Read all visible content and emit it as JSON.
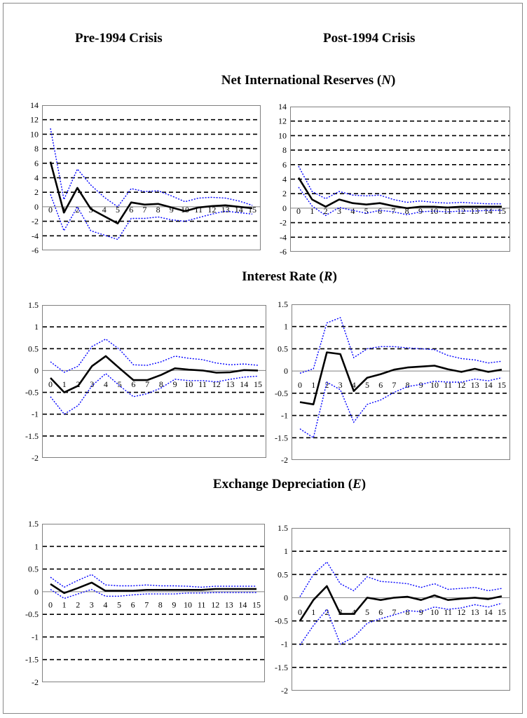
{
  "header": {
    "left": "Pre-1994 Crisis",
    "right": "Post-1994 Crisis"
  },
  "sections": [
    {
      "title": "Net International Reserves",
      "symbol": "N"
    },
    {
      "title": "Interest Rate",
      "symbol": "R"
    },
    {
      "title": "Exchange Depreciation",
      "symbol": "E"
    }
  ],
  "colors": {
    "point": "#000000",
    "band": "#0000ff",
    "grid": "#000000"
  },
  "chart_data": [
    {
      "type": "line",
      "section": "Net International Reserves (N)",
      "column": "Pre-1994 Crisis",
      "x": [
        0,
        1,
        2,
        3,
        4,
        5,
        6,
        7,
        8,
        9,
        10,
        11,
        12,
        13,
        14,
        15
      ],
      "ylim": [
        -6,
        14
      ],
      "yticks": [
        -6,
        -4,
        -2,
        0,
        2,
        4,
        6,
        8,
        10,
        12,
        14
      ],
      "dashed_lines": [
        12,
        10,
        8,
        6,
        4,
        2,
        -2,
        -4
      ],
      "x_labels_at": 0,
      "series": [
        {
          "values": [
            6.2,
            -0.8,
            2.6,
            -0.3,
            -1.3,
            -2.3,
            0.6,
            0.3,
            0.4,
            -0.1,
            -0.6,
            -0.1,
            0.1,
            0.2,
            0.0,
            -0.2
          ]
        },
        {
          "values": [
            10.8,
            1.0,
            5.2,
            3.0,
            1.3,
            0.0,
            2.5,
            2.1,
            2.2,
            1.5,
            0.7,
            1.2,
            1.3,
            1.2,
            0.8,
            0.2
          ]
        },
        {
          "values": [
            1.7,
            -3.3,
            0.0,
            -3.3,
            -3.9,
            -4.5,
            -1.6,
            -1.6,
            -1.4,
            -1.8,
            -2.0,
            -1.5,
            -1.0,
            -0.6,
            -0.8,
            -1.0
          ]
        }
      ]
    },
    {
      "type": "line",
      "section": "Net International Reserves (N)",
      "column": "Post-1994 Crisis",
      "x": [
        0,
        1,
        2,
        3,
        4,
        5,
        6,
        7,
        8,
        9,
        10,
        11,
        12,
        13,
        14,
        15
      ],
      "ylim": [
        -6,
        14
      ],
      "yticks": [
        -6,
        -4,
        -2,
        0,
        2,
        4,
        6,
        8,
        10,
        12,
        14
      ],
      "dashed_lines": [
        12,
        10,
        8,
        6,
        4,
        2,
        -2,
        -4
      ],
      "x_labels_at": 0,
      "series": [
        {
          "values": [
            4.2,
            1.2,
            0.2,
            1.2,
            0.7,
            0.5,
            0.7,
            0.3,
            0.0,
            0.2,
            0.2,
            0.1,
            0.2,
            0.2,
            0.2,
            0.2
          ]
        },
        {
          "values": [
            5.8,
            2.3,
            1.3,
            2.3,
            1.8,
            1.7,
            1.8,
            1.2,
            0.8,
            1.0,
            0.8,
            0.7,
            0.8,
            0.7,
            0.6,
            0.6
          ]
        },
        {
          "values": [
            2.9,
            0.3,
            -1.0,
            0.1,
            -0.3,
            -0.7,
            -0.3,
            -0.5,
            -0.9,
            -0.5,
            -0.4,
            -0.5,
            -0.4,
            -0.4,
            -0.3,
            -0.3
          ]
        }
      ]
    },
    {
      "type": "line",
      "section": "Interest Rate (R)",
      "column": "Pre-1994 Crisis",
      "x": [
        0,
        1,
        2,
        3,
        4,
        5,
        6,
        7,
        8,
        9,
        10,
        11,
        12,
        13,
        14,
        15
      ],
      "ylim": [
        -2,
        1.5
      ],
      "yticks": [
        -2,
        -1.5,
        -1,
        -0.5,
        0,
        0.5,
        1,
        1.5
      ],
      "dashed_lines": [
        1,
        0.5,
        -0.5,
        -1,
        -1.5
      ],
      "x_labels_at": -0.25,
      "series": [
        {
          "values": [
            -0.17,
            -0.5,
            -0.35,
            0.1,
            0.33,
            0.05,
            -0.22,
            -0.22,
            -0.1,
            0.05,
            0.02,
            0.0,
            -0.05,
            -0.04,
            0.01,
            0.0
          ]
        },
        {
          "values": [
            0.2,
            -0.04,
            0.1,
            0.55,
            0.72,
            0.48,
            0.13,
            0.12,
            0.2,
            0.33,
            0.28,
            0.25,
            0.17,
            0.13,
            0.15,
            0.12
          ]
        },
        {
          "values": [
            -0.6,
            -1.0,
            -0.8,
            -0.35,
            -0.07,
            -0.35,
            -0.6,
            -0.53,
            -0.4,
            -0.2,
            -0.23,
            -0.23,
            -0.26,
            -0.2,
            -0.15,
            -0.13
          ]
        }
      ]
    },
    {
      "type": "line",
      "section": "Interest Rate (R)",
      "column": "Post-1994 Crisis",
      "x": [
        0,
        1,
        2,
        3,
        4,
        5,
        6,
        7,
        8,
        9,
        10,
        11,
        12,
        13,
        14,
        15
      ],
      "ylim": [
        -2,
        1.5
      ],
      "yticks": [
        -2,
        -1.5,
        -1,
        -0.5,
        0,
        0.5,
        1,
        1.5
      ],
      "dashed_lines": [
        1,
        0.5,
        -0.5,
        -1,
        -1.5
      ],
      "x_labels_at": -0.25,
      "series": [
        {
          "values": [
            -0.7,
            -0.75,
            0.42,
            0.38,
            -0.45,
            -0.15,
            -0.07,
            0.03,
            0.08,
            0.1,
            0.12,
            0.04,
            -0.02,
            0.05,
            -0.02,
            0.03
          ]
        },
        {
          "values": [
            -0.05,
            0.05,
            1.08,
            1.2,
            0.3,
            0.5,
            0.55,
            0.55,
            0.52,
            0.5,
            0.48,
            0.35,
            0.28,
            0.25,
            0.18,
            0.22
          ]
        },
        {
          "values": [
            -1.3,
            -1.5,
            -0.25,
            -0.42,
            -1.15,
            -0.75,
            -0.65,
            -0.48,
            -0.35,
            -0.3,
            -0.23,
            -0.25,
            -0.25,
            -0.18,
            -0.22,
            -0.15
          ]
        }
      ]
    },
    {
      "type": "line",
      "section": "Exchange Depreciation (E)",
      "column": "Pre-1994 Crisis",
      "x": [
        0,
        1,
        2,
        3,
        4,
        5,
        6,
        7,
        8,
        9,
        10,
        11,
        12,
        13,
        14,
        15
      ],
      "ylim": [
        -2,
        1.5
      ],
      "yticks": [
        -2,
        -1.5,
        -1,
        -0.5,
        0,
        0.5,
        1,
        1.5
      ],
      "dashed_lines": [
        1,
        0.5,
        -0.5,
        -1,
        -1.5
      ],
      "x_labels_at": -0.23,
      "series": [
        {
          "values": [
            0.17,
            -0.03,
            0.08,
            0.2,
            0.02,
            0.02,
            0.02,
            0.04,
            0.04,
            0.04,
            0.04,
            0.04,
            0.06,
            0.06,
            0.06,
            0.06
          ]
        },
        {
          "values": [
            0.32,
            0.1,
            0.25,
            0.38,
            0.15,
            0.13,
            0.13,
            0.15,
            0.13,
            0.13,
            0.12,
            0.1,
            0.12,
            0.12,
            0.12,
            0.12
          ]
        },
        {
          "values": [
            0.05,
            -0.15,
            -0.05,
            0.05,
            -0.1,
            -0.1,
            -0.07,
            -0.05,
            -0.05,
            -0.05,
            -0.03,
            -0.03,
            -0.02,
            -0.02,
            -0.02,
            -0.02
          ]
        }
      ]
    },
    {
      "type": "line",
      "section": "Exchange Depreciation (E)",
      "column": "Post-1994 Crisis",
      "x": [
        0,
        1,
        2,
        3,
        4,
        5,
        6,
        7,
        8,
        9,
        10,
        11,
        12,
        13,
        14,
        15
      ],
      "ylim": [
        -2,
        1.5
      ],
      "yticks": [
        -2,
        -1.5,
        -1,
        -0.5,
        0,
        0.5,
        1,
        1.5
      ],
      "dashed_lines": [
        1,
        0.5,
        -0.5,
        -1,
        -1.5
      ],
      "x_labels_at": -0.25,
      "series": [
        {
          "values": [
            -0.5,
            -0.05,
            0.25,
            -0.35,
            -0.35,
            0.0,
            -0.05,
            0.0,
            0.02,
            -0.05,
            0.05,
            -0.05,
            -0.02,
            0.0,
            -0.03,
            0.03
          ]
        },
        {
          "values": [
            0.02,
            0.5,
            0.77,
            0.3,
            0.15,
            0.45,
            0.35,
            0.33,
            0.3,
            0.22,
            0.3,
            0.18,
            0.2,
            0.22,
            0.15,
            0.2
          ]
        },
        {
          "values": [
            -1.02,
            -0.6,
            -0.25,
            -1.0,
            -0.85,
            -0.55,
            -0.45,
            -0.37,
            -0.28,
            -0.3,
            -0.2,
            -0.25,
            -0.22,
            -0.15,
            -0.2,
            -0.12
          ]
        }
      ]
    }
  ]
}
